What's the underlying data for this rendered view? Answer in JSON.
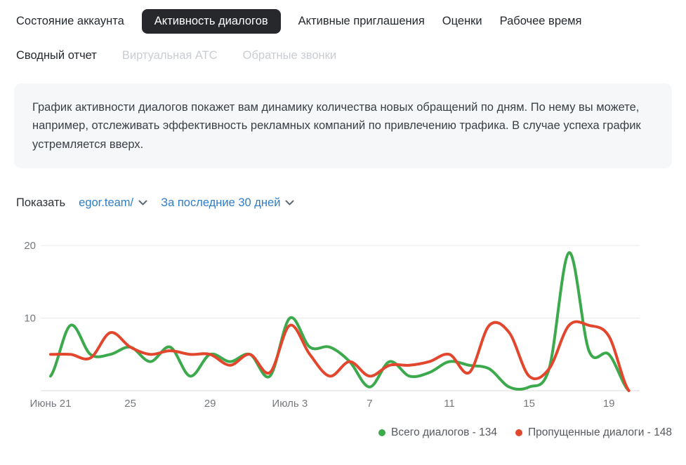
{
  "tabs_row1": [
    {
      "label": "Состояние аккаунта",
      "active": false
    },
    {
      "label": "Активность диалогов",
      "active": true
    },
    {
      "label": "Активные приглашения",
      "active": false
    },
    {
      "label": "Оценки",
      "active": false
    },
    {
      "label": "Рабочее время",
      "active": false
    }
  ],
  "tabs_row2": [
    {
      "label": "Сводный отчет",
      "disabled": false
    },
    {
      "label": "Виртуальная АТС",
      "disabled": true
    },
    {
      "label": "Обратные звонки",
      "disabled": true
    }
  ],
  "info_text": "График активности диалогов покажет вам динамику количества новых обращений по дням. По нему вы можете, например, отслеживать эффективность рекламных компаний по привлечению трафика. В случае успеха график устремляется вверх.",
  "filters": {
    "label": "Показать",
    "account_selector": "egor.team/",
    "period_selector": "За последние 30 дней"
  },
  "colors": {
    "accent_blue": "#2f7cc7",
    "active_tab_bg": "#26282c",
    "series_green": "#3ba94c",
    "series_red": "#e2472e",
    "gridline": "#e8e8e8",
    "baseline": "#d9d9d9",
    "axis_text": "#75797d",
    "info_bg": "#f6f7f8",
    "disabled_tab": "#c9cdd1"
  },
  "chart_data": {
    "type": "line",
    "title": "",
    "xlabel": "",
    "ylabel": "",
    "ylim": [
      0,
      20
    ],
    "yticks": [
      10,
      20
    ],
    "grid": "horizontal",
    "legend_position": "bottom-right",
    "categories": [
      "Июнь 21",
      "Июнь 22",
      "Июнь 23",
      "Июнь 24",
      "Июнь 25",
      "Июнь 26",
      "Июнь 27",
      "Июнь 28",
      "Июнь 29",
      "Июнь 30",
      "Июль 1",
      "Июль 2",
      "Июль 3",
      "Июль 4",
      "Июль 5",
      "Июль 6",
      "Июль 7",
      "Июль 8",
      "Июль 9",
      "Июль 10",
      "Июль 11",
      "Июль 12",
      "Июль 13",
      "Июль 14",
      "Июль 15",
      "Июль 16",
      "Июль 17",
      "Июль 18",
      "Июль 19",
      "Июль 20"
    ],
    "tick_indices": [
      0,
      4,
      8,
      12,
      16,
      20,
      24,
      28
    ],
    "tick_labels": [
      "Июнь 21",
      "25",
      "29",
      "Июль 3",
      "7",
      "11",
      "15",
      "19"
    ],
    "series": [
      {
        "name": "Всего диалогов",
        "total": 134,
        "color": "#3ba94c",
        "values": [
          2,
          9,
          5,
          5,
          6,
          4,
          6,
          2,
          5,
          4,
          5,
          2,
          10,
          6,
          6,
          4,
          0.5,
          4,
          2,
          2.5,
          4,
          3.5,
          3,
          0.5,
          0.5,
          3,
          19,
          5.5,
          5,
          0
        ]
      },
      {
        "name": "Пропущенные диалоги",
        "total": 148,
        "color": "#e2472e",
        "values": [
          5,
          5,
          4.5,
          8,
          6,
          5,
          5.5,
          5,
          5,
          3.5,
          5,
          2.5,
          9,
          5,
          2,
          4,
          2,
          3.5,
          3.5,
          4,
          5,
          2.5,
          9,
          8,
          2,
          3,
          9,
          9,
          7.5,
          0
        ]
      }
    ]
  },
  "legend": [
    {
      "label": "Всего диалогов - 134",
      "color": "#3ba94c"
    },
    {
      "label": "Пропущенные диалоги - 148",
      "color": "#e2472e"
    }
  ]
}
